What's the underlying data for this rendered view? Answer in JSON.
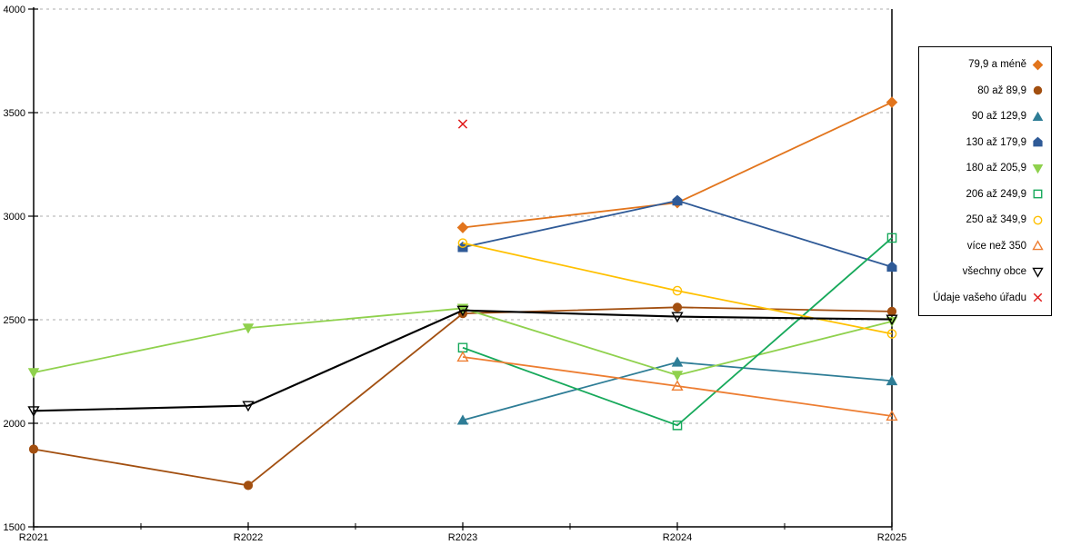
{
  "page": {
    "background": "#FFFFFF"
  },
  "chart_data": {
    "type": "line",
    "title": "",
    "xlabel": "",
    "ylabel": "",
    "x_categories": [
      "R2021",
      "R2022",
      "R2023",
      "R2024",
      "R2025"
    ],
    "ylim": [
      1500,
      4000
    ],
    "yticks": [
      1500,
      2000,
      2500,
      3000,
      3500,
      4000
    ],
    "grid": "horizontal dashed gridlines at 2000-4000",
    "gridline_color": "#ADADAD",
    "axis_color": "#000000",
    "legend_position": "right",
    "series": [
      {
        "name": "79,9 a méně",
        "color": "#E2751D",
        "marker": "diamond",
        "filled": true,
        "values": [
          null,
          null,
          2945,
          3065,
          3550
        ]
      },
      {
        "name": "80 až 89,9",
        "color": "#A24F10",
        "marker": "circle",
        "filled": true,
        "values": [
          1875,
          1700,
          2530,
          2560,
          2540
        ]
      },
      {
        "name": "90 až 129,9",
        "color": "#2E7D96",
        "marker": "triangle-up",
        "filled": true,
        "values": [
          null,
          null,
          2015,
          2295,
          2205
        ]
      },
      {
        "name": "130 až 179,9",
        "color": "#2F5A97",
        "marker": "pentagon",
        "filled": true,
        "values": [
          null,
          null,
          2850,
          3075,
          2755
        ]
      },
      {
        "name": "180 až 205,9",
        "color": "#8FD14D",
        "marker": "triangle-down",
        "filled": true,
        "values": [
          2245,
          2460,
          2555,
          2232,
          2492
        ]
      },
      {
        "name": "206 až 249,9",
        "color": "#17A95B",
        "marker": "square",
        "filled": false,
        "values": [
          null,
          null,
          2365,
          1990,
          2895
        ]
      },
      {
        "name": "250 až 349,9",
        "color": "#FFC000",
        "marker": "circle",
        "filled": false,
        "values": [
          null,
          null,
          2870,
          2640,
          2432
        ]
      },
      {
        "name": "více než 350",
        "color": "#ED7D31",
        "marker": "triangle-up",
        "filled": false,
        "values": [
          null,
          null,
          2320,
          2180,
          2035
        ]
      },
      {
        "name": "všechny obce",
        "color": "#000000",
        "marker": "triangle-down",
        "filled": false,
        "values": [
          2060,
          2085,
          2545,
          2515,
          2502
        ]
      },
      {
        "name": "Údaje vašeho úřadu",
        "color": "#E01B1B",
        "marker": "x",
        "filled": false,
        "values": [
          null,
          null,
          3445,
          null,
          null
        ],
        "show_line": false
      }
    ]
  }
}
